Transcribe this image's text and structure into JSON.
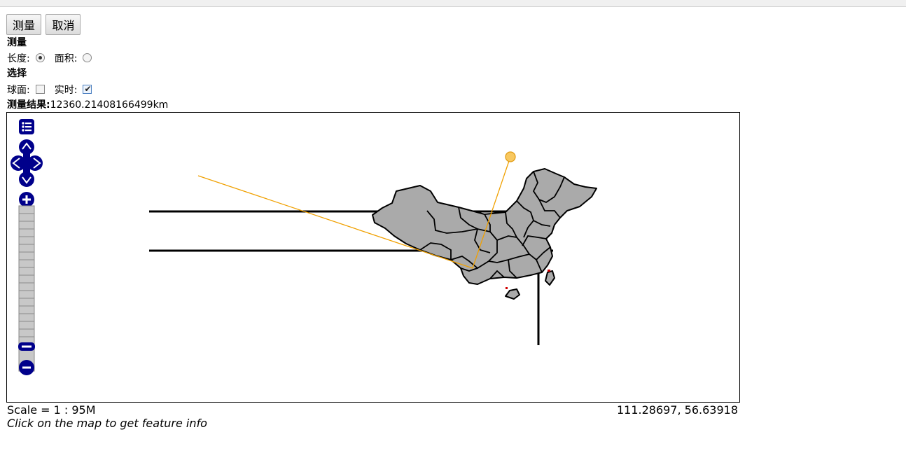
{
  "toolbar": {
    "measure_label": "测量",
    "cancel_label": "取消"
  },
  "measure_section": {
    "title": "测量",
    "length_label": "长度:",
    "length_selected": true,
    "area_label": "面积:",
    "area_selected": false
  },
  "options_section": {
    "title": "选择",
    "geodesic_label": "球面:",
    "geodesic_checked": false,
    "immediate_label": "实时:",
    "immediate_checked": true
  },
  "result": {
    "label": "测量结果:",
    "value": "12360.21408166499km"
  },
  "map": {
    "scale_text": "Scale = 1 : 95M",
    "mouse_position": "111.28697, 56.63918",
    "hint": "Click on the map to get feature info",
    "colors": {
      "land": "#aaaaaa",
      "border": "#000000",
      "measure_line": "#f0a000",
      "measure_point": "#f8c860"
    }
  }
}
